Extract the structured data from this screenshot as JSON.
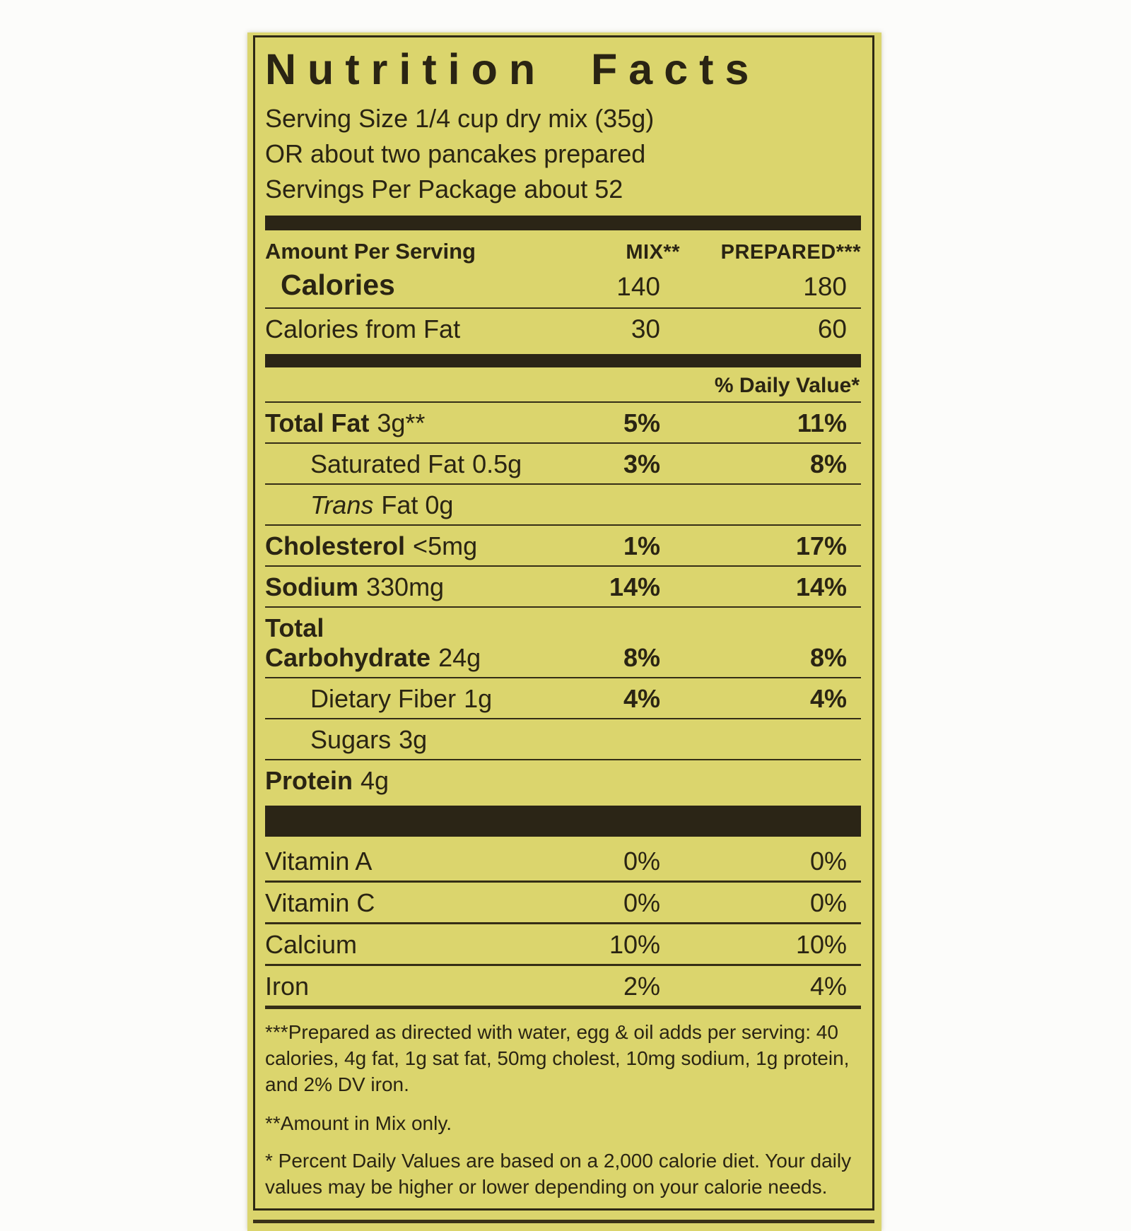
{
  "colors": {
    "label_bg": "#dbd56d",
    "ink": "#2a2413",
    "bar": "#2b2516"
  },
  "title": "Nutrition Facts",
  "serving": {
    "line1": "Serving Size 1/4 cup dry mix (35g)",
    "line2": "OR about two pancakes prepared",
    "line3": "Servings Per Package about 52"
  },
  "col_headers": {
    "left": "Amount Per Serving",
    "mix": "MIX**",
    "prepared": "PREPARED***"
  },
  "calories": {
    "label": "Calories",
    "mix": "140",
    "prepared": "180"
  },
  "calories_from_fat": {
    "label": "Calories from Fat",
    "mix": "30",
    "prepared": "60"
  },
  "dv_header": "% Daily Value*",
  "nutrients": [
    {
      "name": "Total Fat",
      "amount": "3g**",
      "mix": "5%",
      "prepared": "11%"
    },
    {
      "name": "Saturated Fat",
      "amount": "0.5g",
      "mix": "3%",
      "prepared": "8%"
    },
    {
      "name": "Trans",
      "amount": "Fat 0g"
    },
    {
      "name": "Cholesterol",
      "amount": "<5mg",
      "mix": "1%",
      "prepared": "17%"
    },
    {
      "name": "Sodium",
      "amount": "330mg",
      "mix": "14%",
      "prepared": "14%"
    },
    {
      "name": "Total Carbohydrate",
      "amount": "24g",
      "mix": "8%",
      "prepared": "8%"
    },
    {
      "name": "Dietary Fiber",
      "amount": "1g",
      "mix": "4%",
      "prepared": "4%"
    },
    {
      "name": "Sugars",
      "amount": "3g"
    },
    {
      "name": "Protein",
      "amount": "4g"
    }
  ],
  "vitamins": [
    {
      "name": "Vitamin A",
      "mix": "0%",
      "prepared": "0%"
    },
    {
      "name": "Vitamin C",
      "mix": "0%",
      "prepared": "0%"
    },
    {
      "name": "Calcium",
      "mix": "10%",
      "prepared": "10%"
    },
    {
      "name": "Iron",
      "mix": "2%",
      "prepared": "4%"
    }
  ],
  "footnotes": {
    "prepared": "***Prepared as directed with water, egg & oil adds per serving: 40 calories, 4g fat, 1g sat fat, 50mg cholest, 10mg sodium, 1g protein, and 2% DV iron.",
    "mix_only": "**Amount in Mix only.",
    "daily_values": "*  Percent Daily Values are based on a 2,000 calorie diet. Your daily values may be higher or lower depending on your calorie needs."
  }
}
